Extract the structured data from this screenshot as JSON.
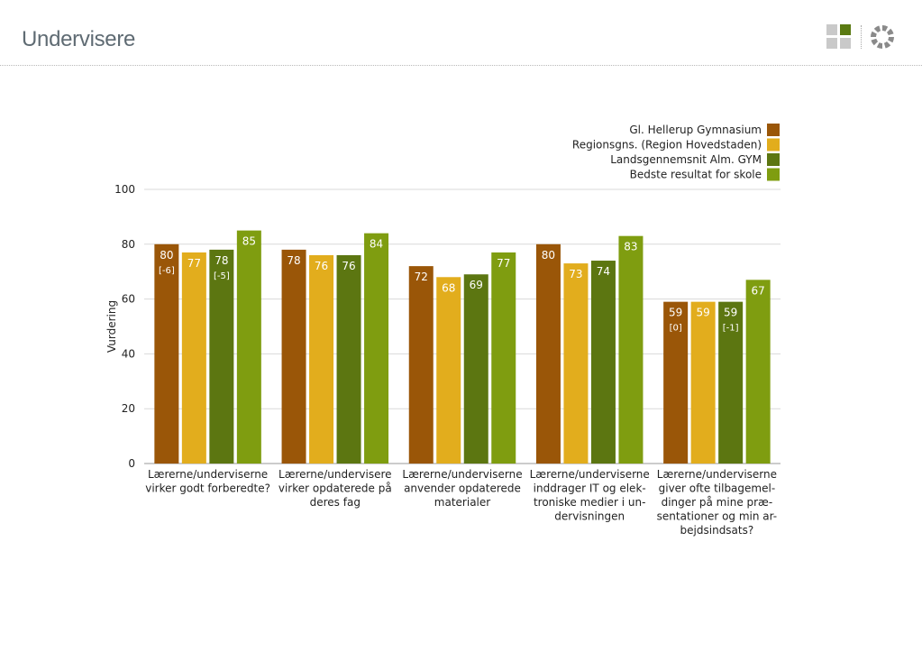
{
  "page": {
    "title": "Undervisere"
  },
  "logo": {
    "icon_left": "grid-squares-icon",
    "icon_right": "ring-segments-icon",
    "colors": [
      "#c9c9c9",
      "#5a7a12",
      "#c9c9c9",
      "#c9c9c9"
    ]
  },
  "chart_data": {
    "type": "bar",
    "ylabel": "Vurdering",
    "ylim": [
      0,
      100
    ],
    "yticks": [
      0,
      20,
      40,
      60,
      80,
      100
    ],
    "grid": true,
    "legend_position": "top-right",
    "categories": [
      [
        "Lærerne/underviserne",
        "virker godt forberedte?"
      ],
      [
        "Lærerne/undervisere",
        "virker opdaterede på",
        "deres fag"
      ],
      [
        "Lærerne/underviserne",
        "anvender opdaterede",
        "materialer"
      ],
      [
        "Lærerne/underviserne",
        "inddrager IT og elek-",
        "troniske medier i un-",
        "dervisningen"
      ],
      [
        "Lærerne/underviserne",
        "giver ofte tilbagemel-",
        "dinger på mine præ-",
        "sentationer og min ar-",
        "bejdsindsats?"
      ]
    ],
    "series": [
      {
        "name": "Gl. Hellerup Gymnasium",
        "color": "#9a5608",
        "values": [
          80,
          78,
          72,
          80,
          59
        ],
        "diffs": [
          "[-6]",
          "",
          "",
          "",
          "[0]"
        ]
      },
      {
        "name": "Regionsgns. (Region Hovedstaden)",
        "color": "#e2ad1d",
        "values": [
          77,
          76,
          68,
          73,
          59
        ],
        "diffs": [
          "",
          "",
          "",
          "",
          ""
        ]
      },
      {
        "name": "Landsgennemsnit Alm. GYM",
        "color": "#5c7611",
        "values": [
          78,
          76,
          69,
          74,
          59
        ],
        "diffs": [
          "[-5]",
          "",
          "",
          "",
          "[-1]"
        ]
      },
      {
        "name": "Bedste resultat for skole",
        "color": "#7f9d10",
        "values": [
          85,
          84,
          77,
          83,
          67
        ],
        "diffs": [
          "",
          "",
          "",
          "",
          ""
        ]
      }
    ]
  }
}
